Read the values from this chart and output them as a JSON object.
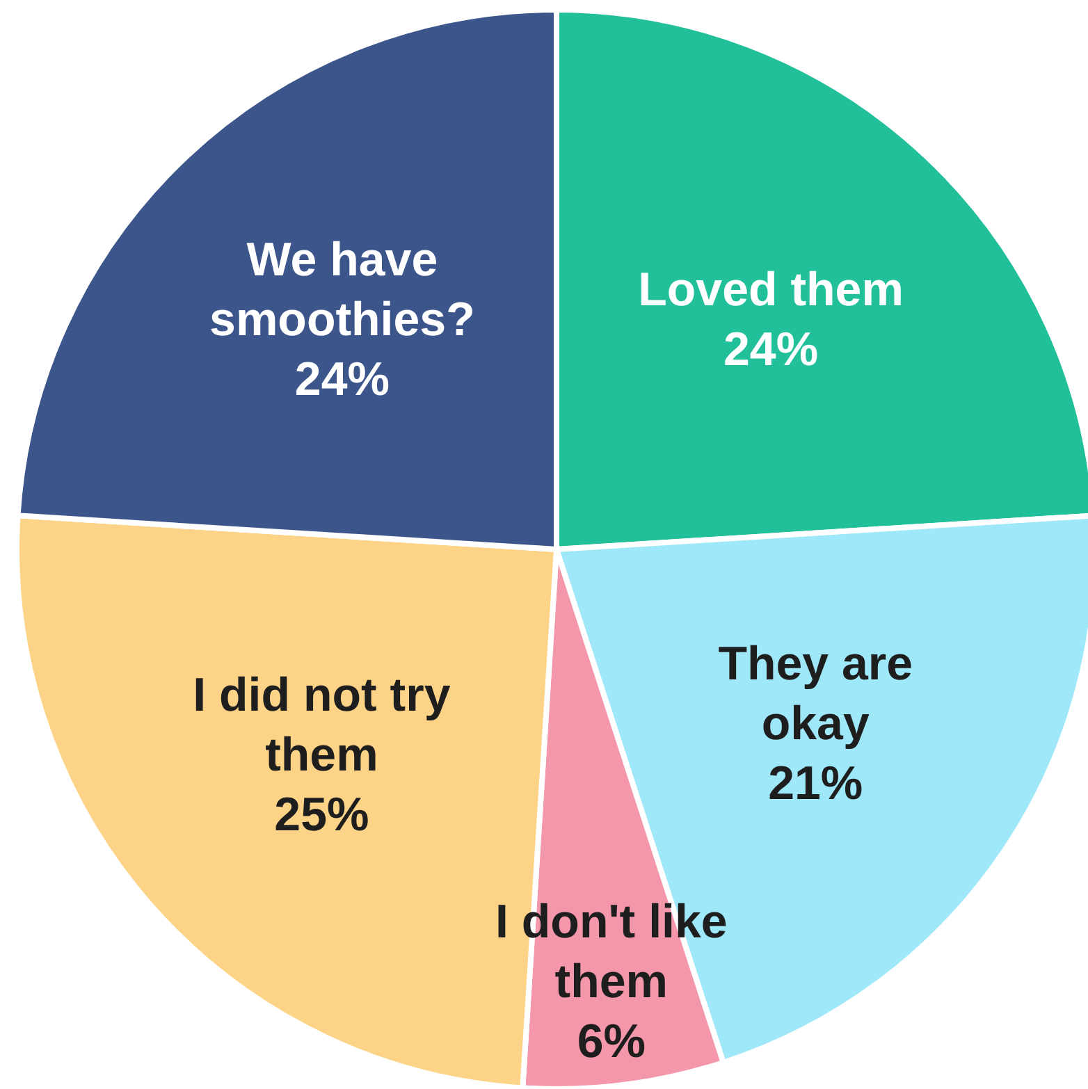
{
  "chart_data": {
    "type": "pie",
    "categories": [
      "Loved them",
      "They are okay",
      "I don't like them",
      "I did not try them",
      "We have smoothies?"
    ],
    "values": [
      24,
      21,
      6,
      25,
      24
    ],
    "value_labels": [
      "24%",
      "21%",
      "6%",
      "25%",
      "24%"
    ],
    "colors": [
      "#21bf9a",
      "#9fe8fa",
      "#f497ab",
      "#fdd387",
      "#3c558b"
    ]
  }
}
